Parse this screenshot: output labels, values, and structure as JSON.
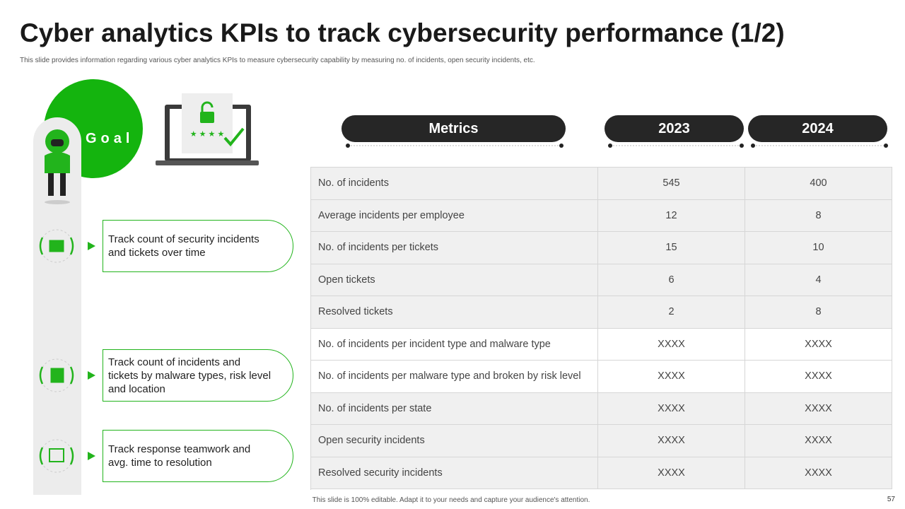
{
  "header": {
    "title": "Cyber analytics KPIs to track cybersecurity performance (1/2)",
    "subtitle": "This slide provides information regarding various cyber analytics KPIs to measure cybersecurity capability by measuring no. of incidents, open security incidents, etc."
  },
  "goal": {
    "label": "Goal",
    "items": [
      "Track count of security incidents and tickets over time",
      "Track count of incidents and tickets by malware types, risk level and location",
      "Track response teamwork and avg. time to resolution"
    ]
  },
  "table": {
    "columns": [
      "Metrics",
      "2023",
      "2024"
    ],
    "rows": [
      [
        "No. of incidents",
        545,
        400
      ],
      [
        "Average incidents per employee",
        12,
        8
      ],
      [
        "No. of incidents per tickets",
        15,
        10
      ],
      [
        "Open tickets",
        6,
        4
      ],
      [
        "Resolved tickets",
        2,
        8
      ],
      [
        "No. of incidents per incident type and malware type",
        "XXXX",
        "XXXX"
      ],
      [
        "No. of incidents per malware type and broken by risk level",
        "XXXX",
        "XXXX"
      ],
      [
        "No. of incidents per state",
        "XXXX",
        "XXXX"
      ],
      [
        "Open security incidents",
        "XXXX",
        "XXXX"
      ],
      [
        "Resolved security incidents",
        "XXXX",
        "XXXX"
      ]
    ]
  },
  "footer": {
    "note": "This slide is 100% editable. Adapt it to your needs and capture your audience's attention.",
    "page": 57
  }
}
